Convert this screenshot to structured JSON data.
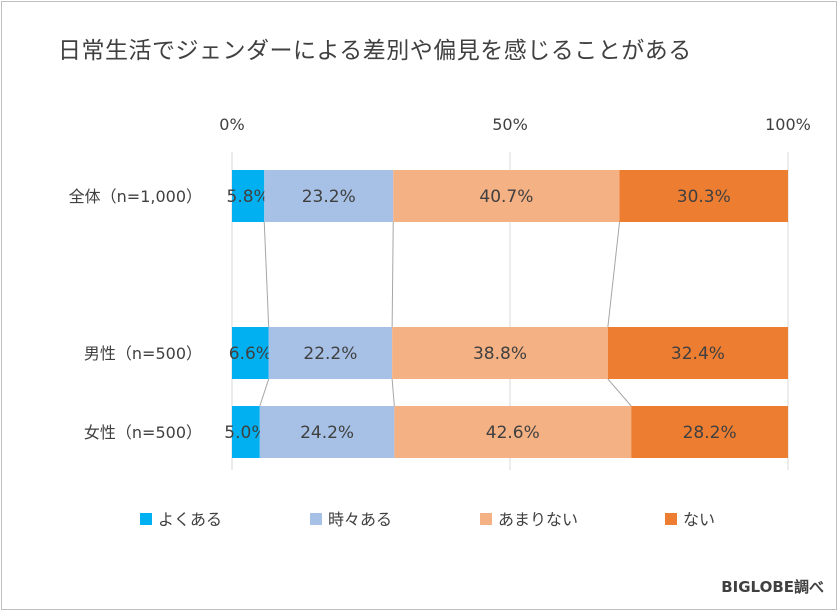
{
  "chart_data": {
    "type": "bar",
    "stacked": true,
    "percent": true,
    "orientation": "horizontal",
    "title": "日常生活でジェンダーによる差別や偏見を感じることがある",
    "categories": [
      "全体（n=1,000）",
      "男性（n=500）",
      "女性（n=500）"
    ],
    "series": [
      {
        "name": "よくある",
        "values": [
          5.8,
          6.6,
          5.0
        ],
        "labels": [
          "5.8%",
          "6.6%",
          "5.0%"
        ],
        "color": "#00b0f0"
      },
      {
        "name": "時々ある",
        "values": [
          23.2,
          22.2,
          24.2
        ],
        "labels": [
          "23.2%",
          "22.2%",
          "24.2%"
        ],
        "color": "#a6c0e6"
      },
      {
        "name": "あまりない",
        "values": [
          40.7,
          38.8,
          42.6
        ],
        "labels": [
          "40.7%",
          "38.8%",
          "42.6%"
        ],
        "color": "#f4b183"
      },
      {
        "name": "ない",
        "values": [
          30.3,
          32.4,
          28.2
        ],
        "labels": [
          "30.3%",
          "32.4%",
          "28.2%"
        ],
        "color": "#ed7d31"
      }
    ],
    "xlim": [
      0,
      100
    ],
    "xticks": [
      "0%",
      "50%",
      "100%"
    ],
    "grid": true,
    "legend_position": "bottom",
    "series_lines": true
  },
  "source": "BIGLOBE調べ"
}
